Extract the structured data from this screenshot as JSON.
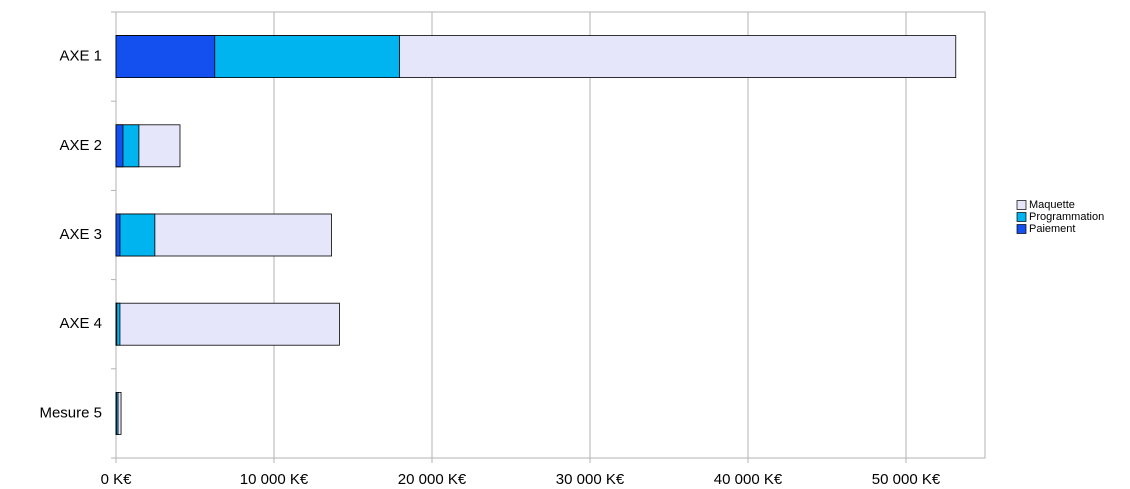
{
  "chart_data": {
    "type": "bar",
    "orientation": "horizontal",
    "categories": [
      "AXE 1",
      "AXE 2",
      "AXE 3",
      "AXE 4",
      "Mesure 5"
    ],
    "series": [
      {
        "name": "Maquette",
        "color": "#e6e6fa",
        "values": [
          53150,
          4050,
          13640,
          14140,
          320
        ]
      },
      {
        "name": "Programmation",
        "color": "#00b4f0",
        "values": [
          17950,
          1450,
          2460,
          250,
          130
        ]
      },
      {
        "name": "Paiement",
        "color": "#1450f0",
        "values": [
          6250,
          440,
          250,
          50,
          30
        ]
      }
    ],
    "xlim": [
      0,
      55000
    ],
    "xticks": [
      {
        "value": 0,
        "label": "0 K€"
      },
      {
        "value": 10000,
        "label": "10 000 K€"
      },
      {
        "value": 20000,
        "label": "20 000 K€"
      },
      {
        "value": 30000,
        "label": "30 000 K€"
      },
      {
        "value": 40000,
        "label": "40 000 K€"
      },
      {
        "value": 50000,
        "label": "50 000 K€"
      }
    ],
    "grid": true,
    "legend": "right"
  }
}
